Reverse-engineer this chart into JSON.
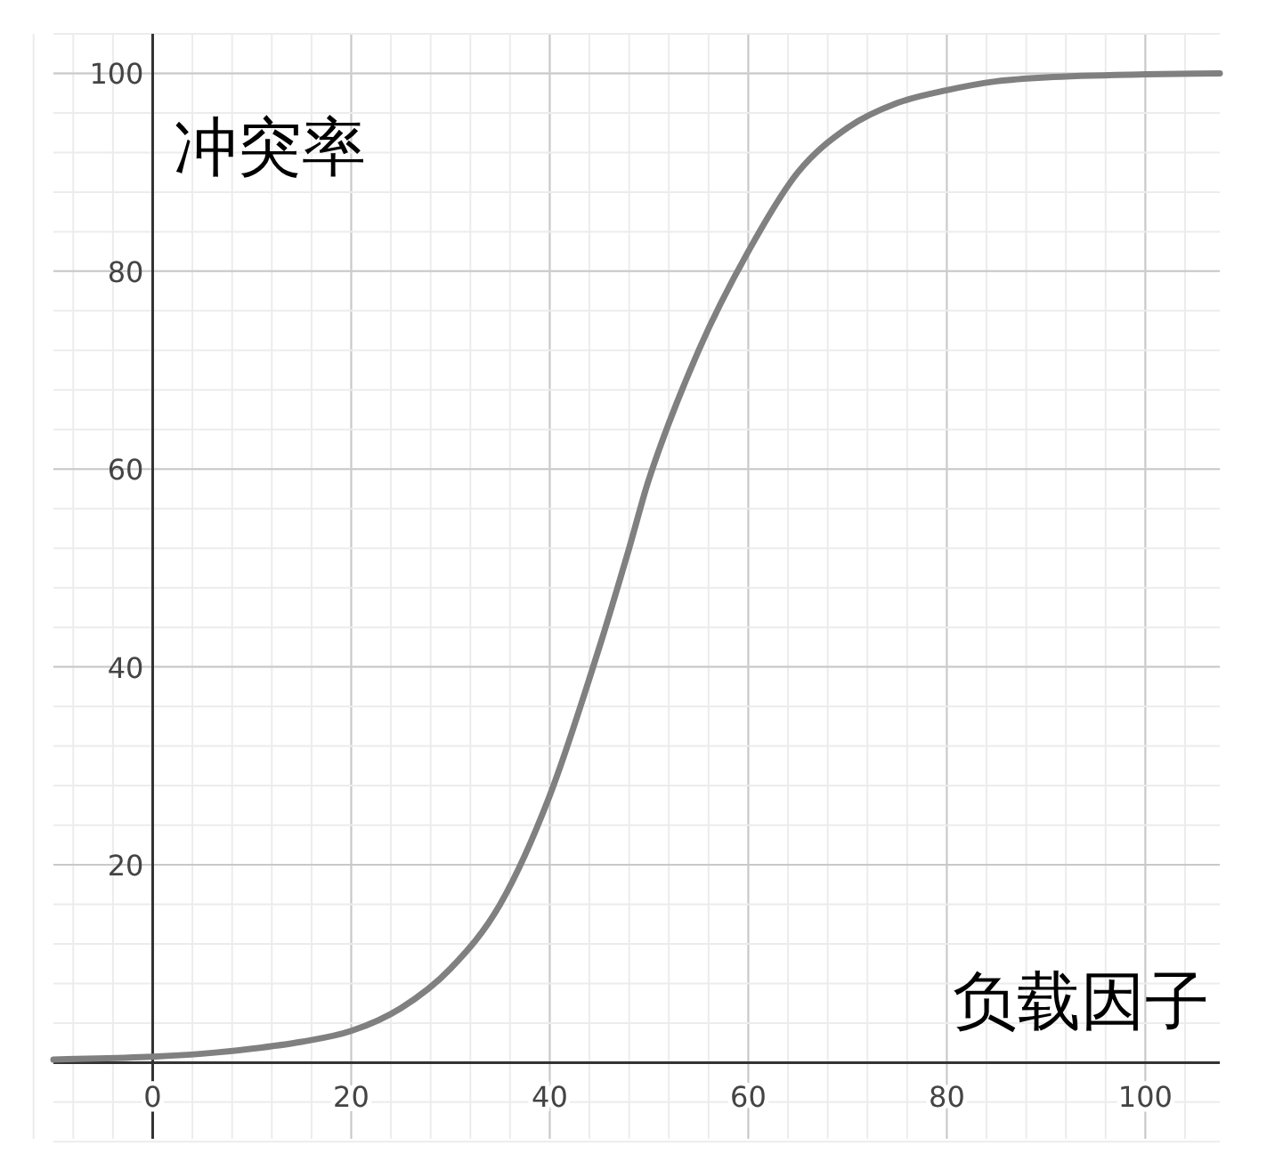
{
  "chart_data": {
    "type": "line",
    "xlabel": "负载因子",
    "ylabel": "冲突率",
    "x": [
      -10,
      0,
      5,
      10,
      15,
      20,
      25,
      30,
      35,
      40,
      45,
      48,
      50,
      55,
      60,
      65,
      70,
      75,
      80,
      85,
      90,
      100,
      107.5
    ],
    "series": [
      {
        "color": "#808080",
        "values": [
          0.3,
          0.6,
          0.9,
          1.4,
          2.1,
          3.2,
          5.5,
          9.5,
          16,
          27,
          42,
          52,
          59,
          72,
          82,
          90,
          94.5,
          97,
          98.3,
          99.2,
          99.6,
          99.9,
          100
        ]
      }
    ],
    "xlim": [
      -10,
      107.5
    ],
    "ylim": [
      -7.7,
      104
    ],
    "xticks": [
      0,
      20,
      40,
      60,
      80,
      100
    ],
    "yticks": [
      20,
      40,
      60,
      80,
      100
    ],
    "grid": true,
    "marker": "none",
    "line_style": "solid"
  }
}
